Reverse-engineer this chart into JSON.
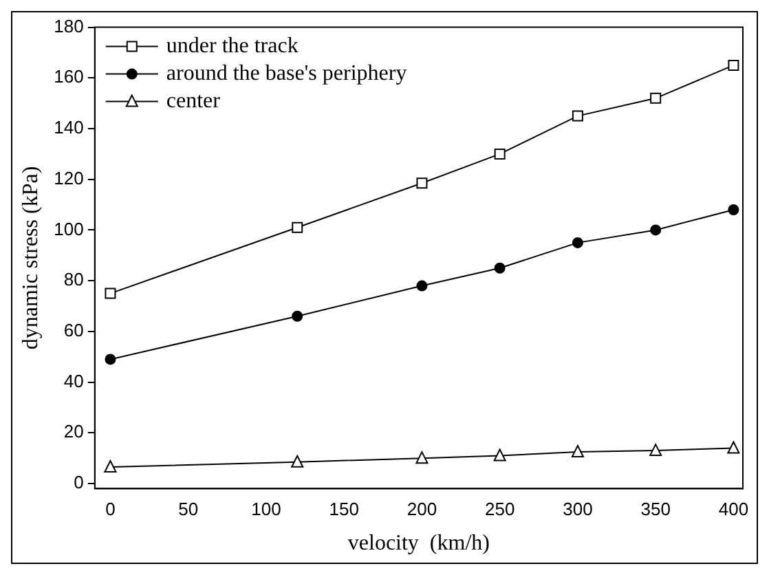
{
  "chart_data": {
    "type": "line",
    "xlabel": "velocity  (km/h)",
    "ylabel": "dynamic stress (kPa)",
    "x": [
      0,
      120,
      200,
      250,
      300,
      350,
      400
    ],
    "series": [
      {
        "name": "under the track",
        "color": "#000000",
        "marker": "square",
        "values": [
          75,
          101,
          118.5,
          130,
          145,
          152,
          165
        ]
      },
      {
        "name": "around the base's periphery",
        "color": "#000000",
        "marker": "circle",
        "values": [
          49,
          66,
          78,
          85,
          95,
          100,
          108
        ]
      },
      {
        "name": "center",
        "color": "#000000",
        "marker": "triangle",
        "values": [
          6.5,
          8.5,
          10,
          11,
          12.5,
          13,
          14
        ]
      }
    ],
    "xlim": [
      -10,
      406
    ],
    "xticks": [
      0,
      50,
      100,
      150,
      200,
      250,
      300,
      350,
      400
    ],
    "ylim": [
      -2,
      180
    ],
    "yticks": [
      0,
      20,
      40,
      60,
      80,
      100,
      120,
      140,
      160,
      180
    ],
    "grid": false,
    "legend": "top left",
    "line_style": "solid"
  }
}
